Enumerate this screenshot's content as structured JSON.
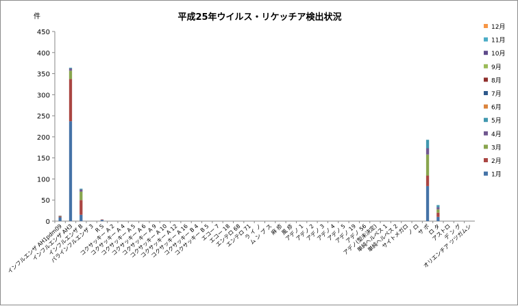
{
  "chart_data": {
    "type": "bar",
    "stacked": true,
    "title": "平成25年ウイルス・リケッチア検出状況",
    "ylabel": "件",
    "ylim": [
      0,
      450
    ],
    "yticks": [
      0,
      50,
      100,
      150,
      200,
      250,
      300,
      350,
      400,
      450
    ],
    "grid": false,
    "legend_position": "right",
    "categories": [
      "インフルエンザ AH1pdm09",
      "インフルエンザ AH3",
      "インフルエンザ B",
      "パラインフルエンザ 3",
      "R S",
      "コクサッキー A 2",
      "コクサッキー A 4",
      "コクサッキー A 5",
      "コクサッキー A 6",
      "コクサッキー A 9",
      "コクサッキー A 10",
      "コクサッキー A 12",
      "コクサッキー A 16",
      "コクサッキー B 4",
      "コクサッキー B 5",
      "エコー 7",
      "エコー 18",
      "エンテロ 68",
      "エンテロ 71",
      "ラ イ ノ",
      "ム ン プ ス",
      "麻 疹",
      "風 疹",
      "アデノ 1",
      "アデノ 2",
      "アデノ 3",
      "アデノ 4",
      "アデノ 5",
      "アデノ 19",
      "アデノ 56",
      "アデノ(型未決定)",
      "単純ヘルペス 1",
      "単純ヘルペス 2",
      "サイトメガロ",
      "ノ ロ",
      "サ ポ",
      "ロ タ",
      "アストロ",
      "デ ン グ",
      "オリエンチア ツツガムシ"
    ],
    "series": [
      {
        "name": "1月",
        "color": "#4573a7",
        "values": [
          9,
          237,
          15,
          0,
          3,
          0,
          0,
          0,
          0,
          0,
          0,
          0,
          0,
          0,
          0,
          0,
          0,
          0,
          0,
          0,
          0,
          0,
          0,
          0,
          0,
          0,
          0,
          0,
          0,
          0,
          0,
          0,
          0,
          0,
          0,
          83,
          10,
          0,
          0,
          0
        ]
      },
      {
        "name": "2月",
        "color": "#aa4643",
        "values": [
          2,
          100,
          35,
          0,
          1,
          0,
          0,
          0,
          0,
          0,
          0,
          0,
          0,
          0,
          0,
          0,
          0,
          0,
          0,
          0,
          0,
          0,
          0,
          0,
          0,
          0,
          0,
          0,
          0,
          0,
          0,
          0,
          0,
          0,
          0,
          25,
          10,
          0,
          0,
          0
        ]
      },
      {
        "name": "3月",
        "color": "#89a54e",
        "values": [
          1,
          20,
          20,
          0,
          0,
          0,
          0,
          0,
          0,
          0,
          0,
          0,
          0,
          0,
          0,
          0,
          0,
          0,
          0,
          0,
          0,
          0,
          0,
          0,
          0,
          0,
          0,
          0,
          0,
          0,
          0,
          0,
          0,
          0,
          0,
          50,
          8,
          0,
          0,
          0
        ]
      },
      {
        "name": "4月",
        "color": "#71588f",
        "values": [
          1,
          5,
          5,
          0,
          0,
          0,
          0,
          0,
          0,
          0,
          0,
          0,
          0,
          0,
          0,
          0,
          0,
          0,
          0,
          0,
          0,
          0,
          0,
          0,
          0,
          0,
          0,
          0,
          0,
          0,
          0,
          0,
          0,
          0,
          0,
          15,
          5,
          0,
          0,
          0
        ]
      },
      {
        "name": "5月",
        "color": "#4198af",
        "values": [
          0,
          2,
          2,
          0,
          0,
          0,
          0,
          0,
          0,
          0,
          0,
          0,
          0,
          0,
          0,
          0,
          0,
          0,
          0,
          0,
          0,
          0,
          0,
          0,
          0,
          0,
          0,
          0,
          0,
          0,
          0,
          0,
          0,
          0,
          0,
          20,
          5,
          0,
          0,
          0
        ]
      },
      {
        "name": "6月",
        "color": "#db843d",
        "values": [
          0,
          0,
          0,
          0,
          0,
          0,
          0,
          0,
          0,
          0,
          0,
          0,
          0,
          0,
          0,
          0,
          0,
          0,
          0,
          0,
          0,
          0,
          0,
          0,
          0,
          0,
          0,
          0,
          0,
          0,
          0,
          0,
          0,
          0,
          0,
          0,
          0,
          0,
          0,
          0
        ]
      },
      {
        "name": "7月",
        "color": "#2f5a8c",
        "values": [
          0,
          0,
          0,
          0,
          0,
          0,
          0,
          0,
          0,
          0,
          0,
          0,
          0,
          0,
          0,
          0,
          0,
          0,
          0,
          0,
          0,
          0,
          0,
          0,
          0,
          0,
          0,
          0,
          0,
          0,
          0,
          0,
          0,
          0,
          0,
          0,
          0,
          0,
          0,
          0
        ]
      },
      {
        "name": "8月",
        "color": "#8f2f2c",
        "values": [
          0,
          0,
          0,
          0,
          0,
          0,
          0,
          0,
          0,
          0,
          0,
          0,
          0,
          0,
          0,
          0,
          0,
          0,
          0,
          0,
          0,
          0,
          0,
          0,
          0,
          0,
          0,
          0,
          0,
          0,
          0,
          0,
          0,
          0,
          0,
          0,
          0,
          0,
          0,
          0
        ]
      },
      {
        "name": "9月",
        "color": "#9bbb59",
        "values": [
          0,
          0,
          0,
          0,
          0,
          0,
          0,
          0,
          0,
          0,
          0,
          0,
          0,
          0,
          0,
          0,
          0,
          0,
          0,
          0,
          0,
          0,
          0,
          0,
          0,
          0,
          0,
          0,
          0,
          0,
          0,
          0,
          0,
          0,
          0,
          0,
          0,
          0,
          0,
          0
        ]
      },
      {
        "name": "10月",
        "color": "#5f4b8b",
        "values": [
          0,
          0,
          0,
          0,
          0,
          0,
          0,
          0,
          0,
          0,
          0,
          0,
          0,
          0,
          0,
          0,
          0,
          0,
          0,
          0,
          0,
          0,
          0,
          0,
          0,
          0,
          0,
          0,
          0,
          0,
          0,
          0,
          0,
          0,
          0,
          0,
          0,
          0,
          0,
          0
        ]
      },
      {
        "name": "11月",
        "color": "#4bacc6",
        "values": [
          0,
          0,
          0,
          0,
          0,
          0,
          0,
          0,
          0,
          0,
          0,
          0,
          0,
          0,
          0,
          0,
          0,
          0,
          0,
          0,
          0,
          0,
          0,
          0,
          0,
          0,
          0,
          0,
          0,
          0,
          0,
          0,
          0,
          0,
          0,
          0,
          0,
          0,
          0,
          0
        ]
      },
      {
        "name": "12月",
        "color": "#f79646",
        "values": [
          0,
          0,
          0,
          0,
          0,
          0,
          0,
          0,
          0,
          0,
          0,
          0,
          0,
          0,
          0,
          0,
          0,
          0,
          0,
          0,
          0,
          0,
          0,
          0,
          0,
          0,
          0,
          0,
          0,
          0,
          0,
          0,
          0,
          0,
          0,
          0,
          0,
          0,
          0,
          0
        ]
      }
    ]
  }
}
